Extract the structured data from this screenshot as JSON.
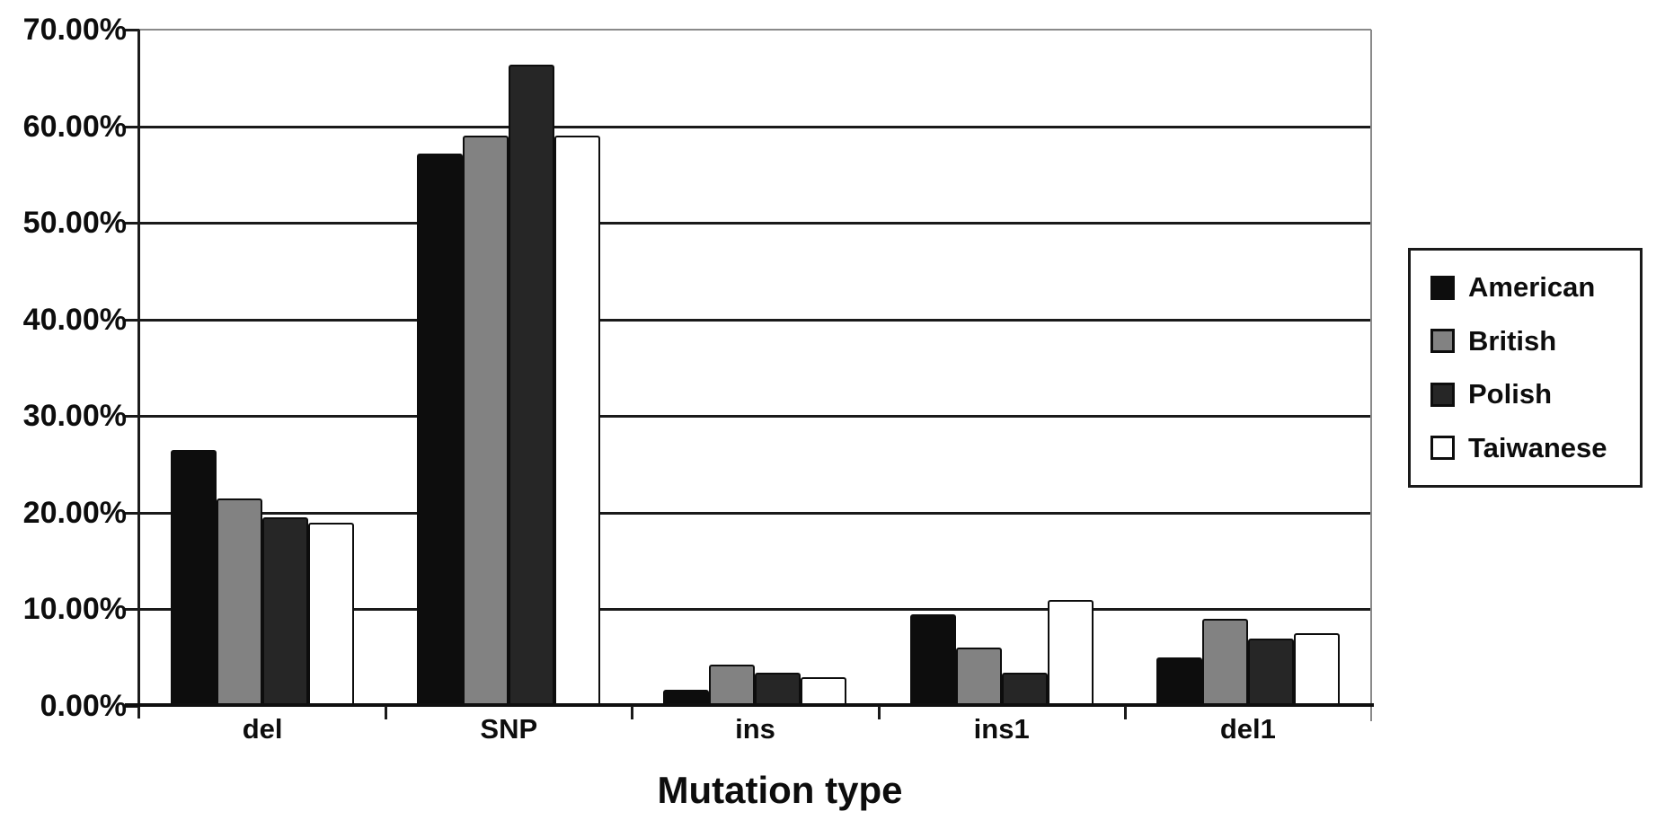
{
  "chart_data": {
    "type": "bar",
    "title": "",
    "xlabel": "Mutation type",
    "ylabel": "",
    "categories": [
      "del",
      "SNP",
      "ins",
      "ins1",
      "del1"
    ],
    "series": [
      {
        "name": "American",
        "color": "#0d0d0d",
        "values": [
          26.5,
          57.2,
          1.7,
          9.5,
          5.0
        ]
      },
      {
        "name": "British",
        "color": "#828282",
        "values": [
          21.5,
          59.0,
          4.3,
          6.0,
          9.0
        ]
      },
      {
        "name": "Polish",
        "color": "#262626",
        "values": [
          19.5,
          66.4,
          3.4,
          3.4,
          7.0
        ]
      },
      {
        "name": "Taiwanese",
        "color": "#ffffff",
        "values": [
          19.0,
          59.0,
          3.0,
          11.0,
          7.5
        ]
      }
    ],
    "ylim": [
      0,
      70
    ],
    "ytick_step": 10,
    "ytick_labels": [
      "70.00%",
      "60.00%",
      "50.00%",
      "40.00%",
      "30.00%",
      "20.00%",
      "10.00%",
      "0.00%"
    ],
    "grid": true,
    "legend_position": "right",
    "value_format": "percent"
  },
  "colors": {
    "gridline": "#1a1a1a",
    "frame_light": "#8a8a8a",
    "axis": "#0f0f0f",
    "text": "#0d0d0d",
    "background": "#ffffff"
  }
}
